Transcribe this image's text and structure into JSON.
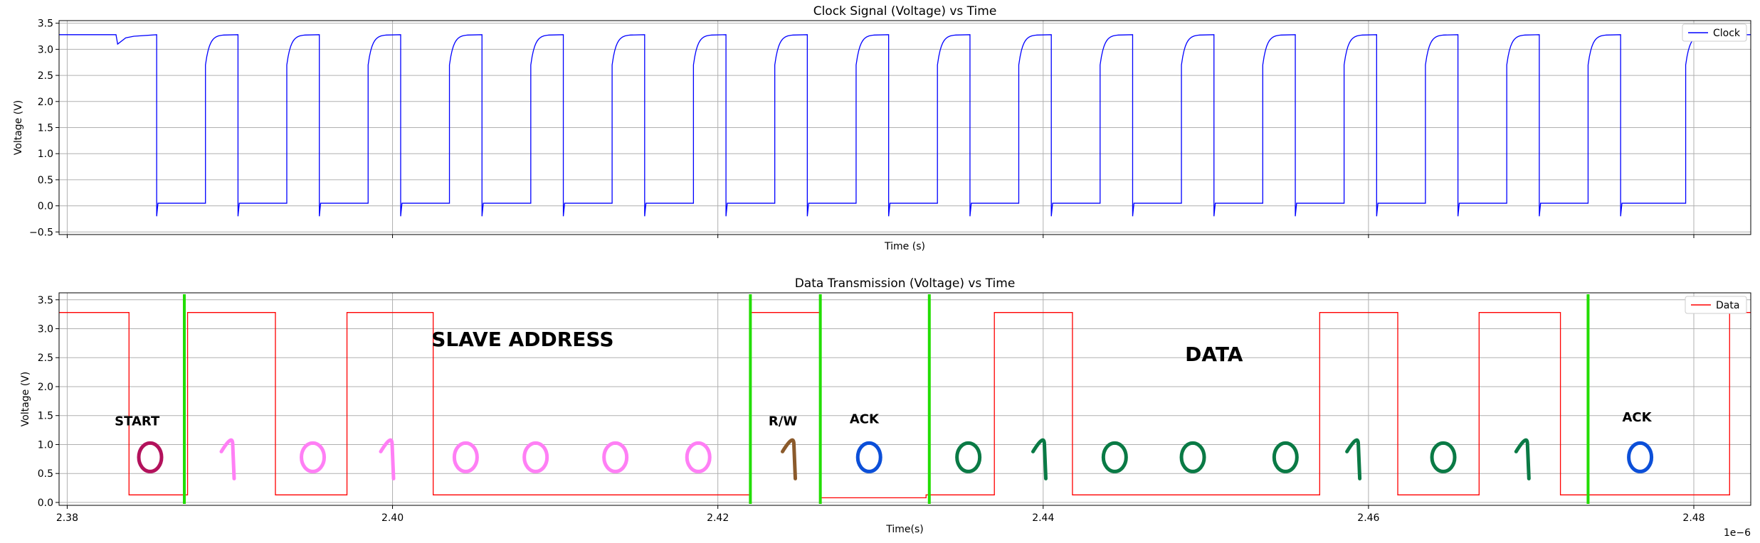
{
  "chart_data": [
    {
      "type": "line",
      "title": "Clock Signal (Voltage) vs Time",
      "xlabel": "Time (s)",
      "ylabel": "Voltage (V)",
      "ylim": [
        -0.55,
        3.55
      ],
      "xlim": [
        2.3795,
        2.4835
      ],
      "yticks": [
        -0.5,
        0.0,
        0.5,
        1.0,
        1.5,
        2.0,
        2.5,
        3.0,
        3.5
      ],
      "ytick_labels": [
        "−0.5",
        "0.0",
        "0.5",
        "1.0",
        "1.5",
        "2.0",
        "2.5",
        "3.0",
        "3.5"
      ],
      "xticks": [
        2.38,
        2.4,
        2.42,
        2.44,
        2.46,
        2.48
      ],
      "xtick_labels": [
        "",
        "",
        "",
        "",
        "",
        ""
      ],
      "grid": true,
      "legend_position": "top-right",
      "series": [
        {
          "name": "Clock",
          "color": "#0000ff",
          "high": 3.28,
          "low": 0.05,
          "unit_scale": "1e-6",
          "falling_edges": [
            2.3855,
            2.3905,
            2.3955,
            2.4005,
            2.4055,
            2.4105,
            2.4155,
            2.4205,
            2.4255,
            2.4305,
            2.4355,
            2.4405,
            2.4455,
            2.4505,
            2.4555,
            2.4605,
            2.4655,
            2.4705,
            2.4755
          ],
          "rising_edges": [
            2.3885,
            2.3935,
            2.3985,
            2.4035,
            2.4085,
            2.4135,
            2.4185,
            2.4235,
            2.4285,
            2.4335,
            2.4385,
            2.4435,
            2.4485,
            2.4535,
            2.4585,
            2.4635,
            2.4685,
            2.4735,
            2.4795
          ]
        }
      ]
    },
    {
      "type": "line",
      "title": "Data Transmission (Voltage) vs Time",
      "xlabel": "Time(s)",
      "ylabel": "Voltage (V)",
      "ylim": [
        -0.05,
        3.62
      ],
      "xlim": [
        2.3795,
        2.4835
      ],
      "yticks": [
        0.0,
        0.5,
        1.0,
        1.5,
        2.0,
        2.5,
        3.0,
        3.5
      ],
      "ytick_labels": [
        "0.0",
        "0.5",
        "1.0",
        "1.5",
        "2.0",
        "2.5",
        "3.0",
        "3.5"
      ],
      "xticks": [
        2.38,
        2.4,
        2.42,
        2.44,
        2.46,
        2.48
      ],
      "xtick_labels": [
        "2.38",
        "2.40",
        "2.42",
        "2.44",
        "2.46",
        "2.48"
      ],
      "offset_text": "1e−6",
      "grid": true,
      "legend_position": "top-right",
      "series": [
        {
          "name": "Data",
          "color": "#ff0000",
          "points": [
            [
              2.3795,
              3.28
            ],
            [
              2.3838,
              3.28
            ],
            [
              2.3838,
              0.13
            ],
            [
              2.3874,
              0.13
            ],
            [
              2.3874,
              3.28
            ],
            [
              2.3928,
              3.28
            ],
            [
              2.3928,
              0.13
            ],
            [
              2.3972,
              0.13
            ],
            [
              2.3972,
              3.28
            ],
            [
              2.4025,
              3.28
            ],
            [
              2.4025,
              0.13
            ],
            [
              2.422,
              0.13
            ],
            [
              2.422,
              3.28
            ],
            [
              2.4263,
              3.28
            ],
            [
              2.4263,
              0.08
            ],
            [
              2.4328,
              0.08
            ],
            [
              2.4328,
              0.13
            ],
            [
              2.437,
              0.13
            ],
            [
              2.437,
              3.28
            ],
            [
              2.4418,
              3.28
            ],
            [
              2.4418,
              0.13
            ],
            [
              2.457,
              0.13
            ],
            [
              2.457,
              3.28
            ],
            [
              2.4618,
              3.28
            ],
            [
              2.4618,
              0.13
            ],
            [
              2.4668,
              0.13
            ],
            [
              2.4668,
              3.28
            ],
            [
              2.4718,
              3.28
            ],
            [
              2.4718,
              0.13
            ],
            [
              2.4822,
              0.13
            ],
            [
              2.4822,
              3.28
            ],
            [
              2.4835,
              3.28
            ]
          ]
        }
      ],
      "markers": [
        2.3872,
        2.422,
        2.4263,
        2.433,
        2.4735
      ],
      "marker_color": "#22dd00",
      "annotations": [
        {
          "text": "START",
          "x": 2.3843,
          "y": 1.33,
          "size": "small",
          "color": "#000000"
        },
        {
          "text": "SLAVE ADDRESS",
          "x": 2.408,
          "y": 2.7,
          "size": "large",
          "color": "#000000"
        },
        {
          "text": "R/W",
          "x": 2.424,
          "y": 1.33,
          "size": "small",
          "color": "#000000"
        },
        {
          "text": "ACK",
          "x": 2.429,
          "y": 1.37,
          "size": "small",
          "color": "#000000"
        },
        {
          "text": "DATA",
          "x": 2.4505,
          "y": 2.44,
          "size": "large",
          "color": "#000000"
        },
        {
          "text": "ACK",
          "x": 2.4765,
          "y": 1.4,
          "size": "small",
          "color": "#000000"
        }
      ],
      "handwritten_bits": [
        {
          "glyph": "0",
          "x": 2.3851,
          "color": "#b3125c"
        },
        {
          "glyph": "1",
          "x": 2.39,
          "color": "#ff7ff5"
        },
        {
          "glyph": "0",
          "x": 2.3951,
          "color": "#ff7ff5"
        },
        {
          "glyph": "1",
          "x": 2.3998,
          "color": "#ff7ff5"
        },
        {
          "glyph": "0",
          "x": 2.4045,
          "color": "#ff7ff5"
        },
        {
          "glyph": "0",
          "x": 2.4088,
          "color": "#ff7ff5"
        },
        {
          "glyph": "0",
          "x": 2.4137,
          "color": "#ff7ff5"
        },
        {
          "glyph": "0",
          "x": 2.4188,
          "color": "#ff7ff5"
        },
        {
          "glyph": "1",
          "x": 2.4245,
          "color": "#8b5a2b"
        },
        {
          "glyph": "0",
          "x": 2.4293,
          "color": "#0c4fd8"
        },
        {
          "glyph": "0",
          "x": 2.4354,
          "color": "#0a7a45"
        },
        {
          "glyph": "1",
          "x": 2.4399,
          "color": "#0a7a45"
        },
        {
          "glyph": "0",
          "x": 2.4444,
          "color": "#0a7a45"
        },
        {
          "glyph": "0",
          "x": 2.4492,
          "color": "#0a7a45"
        },
        {
          "glyph": "0",
          "x": 2.4549,
          "color": "#0a7a45"
        },
        {
          "glyph": "1",
          "x": 2.4592,
          "color": "#0a7a45"
        },
        {
          "glyph": "0",
          "x": 2.4646,
          "color": "#0a7a45"
        },
        {
          "glyph": "1",
          "x": 2.4696,
          "color": "#0a7a45"
        },
        {
          "glyph": "0",
          "x": 2.4767,
          "color": "#0c4fd8"
        }
      ]
    }
  ]
}
